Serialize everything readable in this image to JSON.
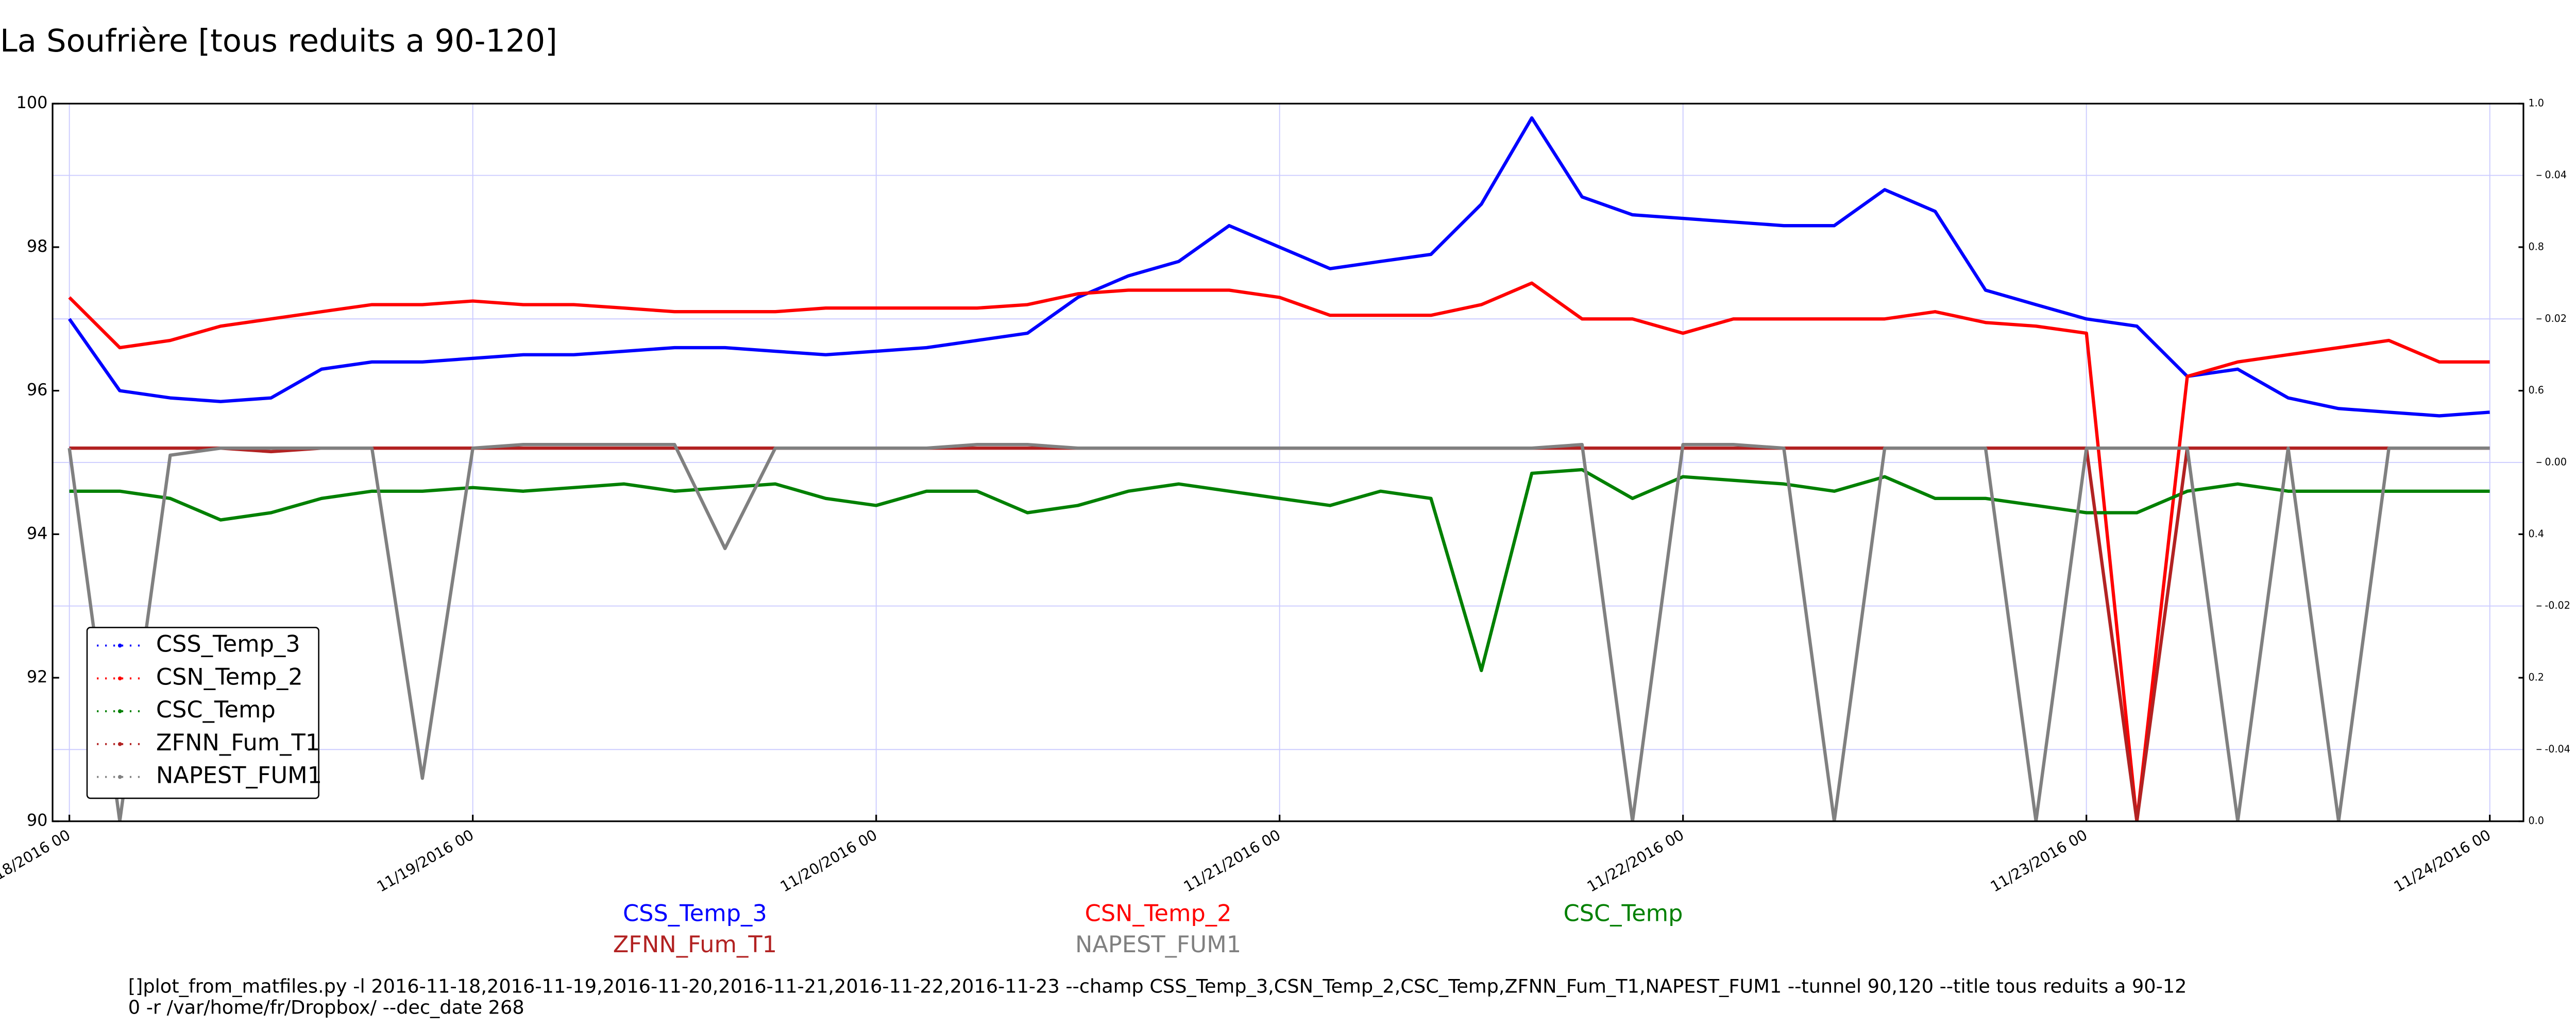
{
  "chart_data": {
    "type": "line",
    "title": "La Soufrière [tous reduits a 90-120]",
    "x": [
      "2016-11-18 00",
      "2016-11-18 03",
      "2016-11-18 06",
      "2016-11-18 09",
      "2016-11-18 12",
      "2016-11-18 15",
      "2016-11-18 18",
      "2016-11-18 21",
      "2016-11-19 00",
      "2016-11-19 03",
      "2016-11-19 06",
      "2016-11-19 09",
      "2016-11-19 12",
      "2016-11-19 15",
      "2016-11-19 18",
      "2016-11-19 21",
      "2016-11-20 00",
      "2016-11-20 03",
      "2016-11-20 06",
      "2016-11-20 09",
      "2016-11-20 12",
      "2016-11-20 15",
      "2016-11-20 18",
      "2016-11-20 21",
      "2016-11-21 00",
      "2016-11-21 03",
      "2016-11-21 06",
      "2016-11-21 09",
      "2016-11-21 12",
      "2016-11-21 15",
      "2016-11-21 18",
      "2016-11-21 21",
      "2016-11-22 00",
      "2016-11-22 03",
      "2016-11-22 06",
      "2016-11-22 09",
      "2016-11-22 12",
      "2016-11-22 15",
      "2016-11-22 18",
      "2016-11-22 21",
      "2016-11-23 00",
      "2016-11-23 03",
      "2016-11-23 06",
      "2016-11-23 09",
      "2016-11-23 12",
      "2016-11-23 15",
      "2016-11-23 18",
      "2016-11-23 21",
      "2016-11-24 00"
    ],
    "series": [
      {
        "name": "CSS_Temp_3",
        "color": "#0000ff",
        "values": [
          97.0,
          96.0,
          95.9,
          95.85,
          95.9,
          96.3,
          96.4,
          96.4,
          96.45,
          96.5,
          96.5,
          96.55,
          96.6,
          96.6,
          96.55,
          96.5,
          96.55,
          96.6,
          96.7,
          96.8,
          97.3,
          97.6,
          97.8,
          98.3,
          98.0,
          97.7,
          97.8,
          97.9,
          98.6,
          99.8,
          98.7,
          98.45,
          98.4,
          98.35,
          98.3,
          98.3,
          98.8,
          98.5,
          97.4,
          97.2,
          97.0,
          96.9,
          96.2,
          96.3,
          95.9,
          95.75,
          95.7,
          95.65,
          95.7
        ]
      },
      {
        "name": "CSN_Temp_2",
        "color": "#ff0000",
        "values": [
          97.3,
          96.6,
          96.7,
          96.9,
          97.0,
          97.1,
          97.2,
          97.2,
          97.25,
          97.2,
          97.2,
          97.15,
          97.1,
          97.1,
          97.1,
          97.15,
          97.15,
          97.15,
          97.15,
          97.2,
          97.35,
          97.4,
          97.4,
          97.4,
          97.3,
          97.05,
          97.05,
          97.05,
          97.2,
          97.5,
          97.0,
          97.0,
          96.8,
          97.0,
          97.0,
          97.0,
          97.0,
          97.1,
          96.95,
          96.9,
          96.8,
          90.0,
          96.2,
          96.4,
          96.5,
          96.6,
          96.7,
          96.4,
          96.4
        ]
      },
      {
        "name": "CSC_Temp",
        "color": "#008000",
        "values": [
          94.6,
          94.6,
          94.5,
          94.2,
          94.3,
          94.5,
          94.6,
          94.6,
          94.65,
          94.6,
          94.65,
          94.7,
          94.6,
          94.65,
          94.7,
          94.5,
          94.4,
          94.6,
          94.6,
          94.3,
          94.4,
          94.6,
          94.7,
          94.6,
          94.5,
          94.4,
          94.6,
          94.5,
          92.1,
          94.85,
          94.9,
          94.5,
          94.8,
          94.75,
          94.7,
          94.6,
          94.8,
          94.5,
          94.5,
          94.4,
          94.3,
          94.3,
          94.6,
          94.7,
          94.6,
          94.6,
          94.6,
          94.6,
          94.6
        ]
      },
      {
        "name": "ZFNN_Fum_T1",
        "color": "#b22222",
        "values": [
          95.2,
          95.2,
          95.2,
          95.2,
          95.15,
          95.2,
          95.2,
          95.2,
          95.2,
          95.2,
          95.2,
          95.2,
          95.2,
          95.2,
          95.2,
          95.2,
          95.2,
          95.2,
          95.2,
          95.2,
          95.2,
          95.2,
          95.2,
          95.2,
          95.2,
          95.2,
          95.2,
          95.2,
          95.2,
          95.2,
          95.2,
          95.2,
          95.2,
          95.2,
          95.2,
          95.2,
          95.2,
          95.2,
          95.2,
          95.2,
          95.2,
          90.0,
          95.2,
          95.2,
          95.2,
          95.2,
          95.2,
          95.2,
          95.2
        ]
      },
      {
        "name": "NAPEST_FUM1",
        "color": "#808080",
        "values": [
          95.2,
          90.0,
          95.1,
          95.2,
          95.2,
          95.2,
          95.2,
          90.6,
          95.2,
          95.25,
          95.25,
          95.25,
          95.25,
          93.8,
          95.2,
          95.2,
          95.2,
          95.2,
          95.25,
          95.25,
          95.2,
          95.2,
          95.2,
          95.2,
          95.2,
          95.2,
          95.2,
          95.2,
          95.2,
          95.2,
          95.25,
          90.0,
          95.25,
          95.25,
          95.2,
          90.0,
          95.2,
          95.2,
          95.2,
          90.0,
          95.2,
          95.2,
          95.2,
          90.0,
          95.2,
          90.0,
          95.2,
          95.2,
          95.2
        ]
      }
    ],
    "xlim": [
      "2016-11-17 23",
      "2016-11-24 02"
    ],
    "xticks": [
      {
        "value": "2016-11-18 00",
        "label": "11/18/2016 00"
      },
      {
        "value": "2016-11-19 00",
        "label": "11/19/2016 00"
      },
      {
        "value": "2016-11-20 00",
        "label": "11/20/2016 00"
      },
      {
        "value": "2016-11-21 00",
        "label": "11/21/2016 00"
      },
      {
        "value": "2016-11-22 00",
        "label": "11/22/2016 00"
      },
      {
        "value": "2016-11-23 00",
        "label": "11/23/2016 00"
      },
      {
        "value": "2016-11-24 00",
        "label": "11/24/2016 00"
      }
    ],
    "ylim": [
      90,
      100
    ],
    "yticks": [
      90,
      92,
      94,
      96,
      98,
      100
    ],
    "y2lim": [
      0,
      1
    ],
    "y2ticks": [
      {
        "value": 0,
        "label": "0.0"
      },
      {
        "value": 0.2,
        "label": "0.2"
      },
      {
        "value": 0.4,
        "label": "0.4"
      },
      {
        "value": 0.6,
        "label": "0.6"
      },
      {
        "value": 0.8,
        "label": "0.8"
      },
      {
        "value": 1,
        "label": "1.0"
      }
    ],
    "y3lim": [
      -0.05,
      0.05
    ],
    "y3ticks": [
      {
        "value": -0.04,
        "label": "-0.04"
      },
      {
        "value": -0.02,
        "label": "-0.02"
      },
      {
        "value": 0,
        "label": "0.00"
      },
      {
        "value": 0.02,
        "label": "0.02"
      },
      {
        "value": 0.04,
        "label": "0.04"
      }
    ],
    "grid": true,
    "legend": "lower left",
    "footer": [
      "[]plot_from_matfiles.py -l 2016-11-18,2016-11-19,2016-11-20,2016-11-21,2016-11-22,2016-11-23 --champ CSS_Temp_3,CSN_Temp_2,CSC_Temp,ZFNN_Fum_T1,NAPEST_FUM1 --tunnel 90,120 --title tous reduits a 90-12",
      "0 -r /var/home/fr/Dropbox/ --dec_date 268"
    ]
  }
}
